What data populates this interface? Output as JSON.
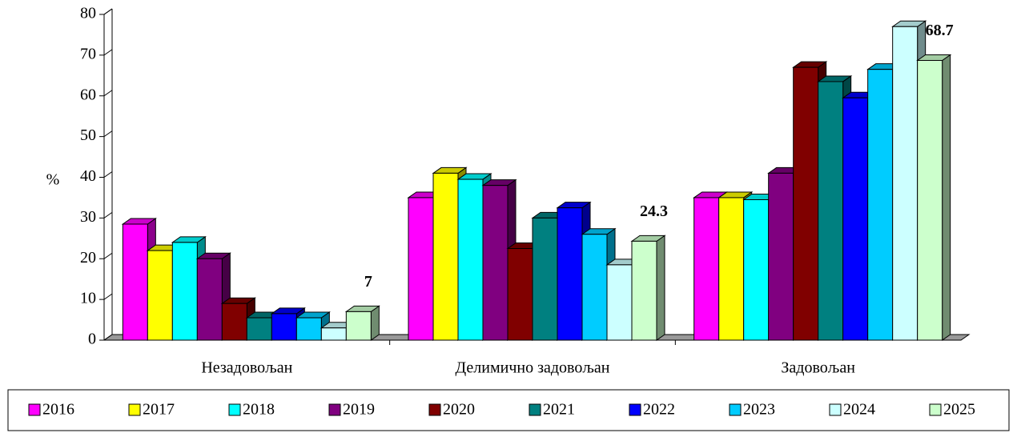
{
  "chart_data": {
    "type": "bar3d",
    "y_label": "%",
    "categories": [
      "Незадовољан",
      "Делимично задовољан",
      "Задовољан"
    ],
    "ylim": [
      0,
      80
    ],
    "yticks": [
      0,
      10,
      20,
      30,
      40,
      50,
      60,
      70,
      80
    ],
    "series": [
      {
        "name": "2016",
        "color": "#ff00ff",
        "values": [
          28.5,
          35,
          35
        ]
      },
      {
        "name": "2017",
        "color": "#ffff00",
        "values": [
          22,
          41,
          35
        ]
      },
      {
        "name": "2018",
        "color": "#00ffff",
        "values": [
          24,
          39.5,
          34.5
        ]
      },
      {
        "name": "2019",
        "color": "#800080",
        "values": [
          20,
          38,
          41
        ]
      },
      {
        "name": "2020",
        "color": "#800000",
        "values": [
          9,
          22.5,
          67
        ]
      },
      {
        "name": "2021",
        "color": "#008080",
        "values": [
          5.5,
          30,
          63.5
        ]
      },
      {
        "name": "2022",
        "color": "#0000ff",
        "values": [
          6.5,
          32.5,
          59.5
        ]
      },
      {
        "name": "2023",
        "color": "#00ccff",
        "values": [
          5.5,
          26,
          66.5
        ]
      },
      {
        "name": "2024",
        "color": "#ccffff",
        "values": [
          3,
          18.5,
          77
        ]
      },
      {
        "name": "2025",
        "color": "#ccffcc",
        "values": [
          7,
          24.3,
          68.7
        ],
        "data_labels": true
      }
    ],
    "legend": "bottom"
  }
}
